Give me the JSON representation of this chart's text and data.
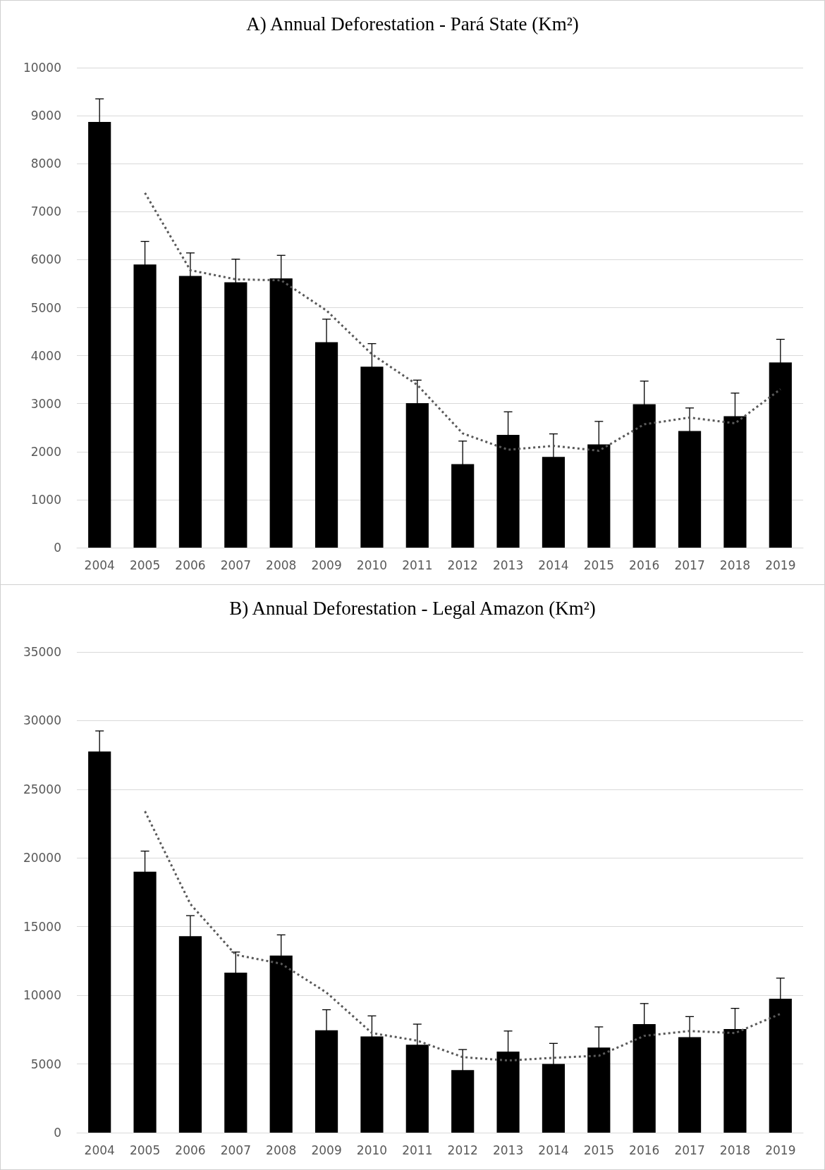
{
  "chart_data": [
    {
      "type": "bar",
      "title": "A) Annual Deforestation - Pará State (Km²)",
      "categories": [
        "2004",
        "2005",
        "2006",
        "2007",
        "2008",
        "2009",
        "2010",
        "2011",
        "2012",
        "2013",
        "2014",
        "2015",
        "2016",
        "2017",
        "2018",
        "2019"
      ],
      "series": [
        {
          "color": "#000000",
          "values": [
            8870,
            5900,
            5660,
            5530,
            5610,
            4280,
            3770,
            3010,
            1740,
            2350,
            1890,
            2150,
            2990,
            2430,
            2740,
            3860
          ],
          "errors": [
            480,
            480,
            480,
            480,
            480,
            480,
            480,
            480,
            480,
            480,
            480,
            480,
            480,
            480,
            480,
            480
          ]
        },
        {
          "type": "line",
          "color": "#595959",
          "line_style": "dotted",
          "marker": "none",
          "values": [
            null,
            7390,
            5780,
            5590,
            5570,
            4940,
            4030,
            3390,
            2380,
            2040,
            2120,
            2020,
            2570,
            2710,
            2590,
            3300
          ]
        }
      ],
      "ylim": [
        0,
        10000
      ],
      "yticks": [
        0,
        1000,
        2000,
        3000,
        4000,
        5000,
        6000,
        7000,
        8000,
        9000,
        10000
      ],
      "grid": "y"
    },
    {
      "type": "bar",
      "title": "B) Annual Deforestation - Legal Amazon (Km²)",
      "categories": [
        "2004",
        "2005",
        "2006",
        "2007",
        "2008",
        "2009",
        "2010",
        "2011",
        "2012",
        "2013",
        "2014",
        "2015",
        "2016",
        "2017",
        "2018",
        "2019"
      ],
      "series": [
        {
          "color": "#000000",
          "values": [
            27750,
            19000,
            14300,
            11650,
            12900,
            7450,
            7000,
            6400,
            4550,
            5900,
            5000,
            6200,
            7900,
            6950,
            7550,
            9750
          ],
          "errors": [
            1500,
            1500,
            1500,
            1500,
            1500,
            1500,
            1500,
            1500,
            1500,
            1500,
            1500,
            1500,
            1500,
            1500,
            1500,
            1500
          ]
        },
        {
          "type": "line",
          "color": "#595959",
          "line_style": "dotted",
          "marker": "none",
          "values": [
            null,
            23400,
            16650,
            12950,
            12300,
            10200,
            7250,
            6700,
            5500,
            5250,
            5450,
            5600,
            7050,
            7400,
            7250,
            8650
          ]
        }
      ],
      "ylim": [
        0,
        35000
      ],
      "yticks": [
        0,
        5000,
        10000,
        15000,
        20000,
        25000,
        30000,
        35000
      ],
      "grid": "y"
    }
  ]
}
